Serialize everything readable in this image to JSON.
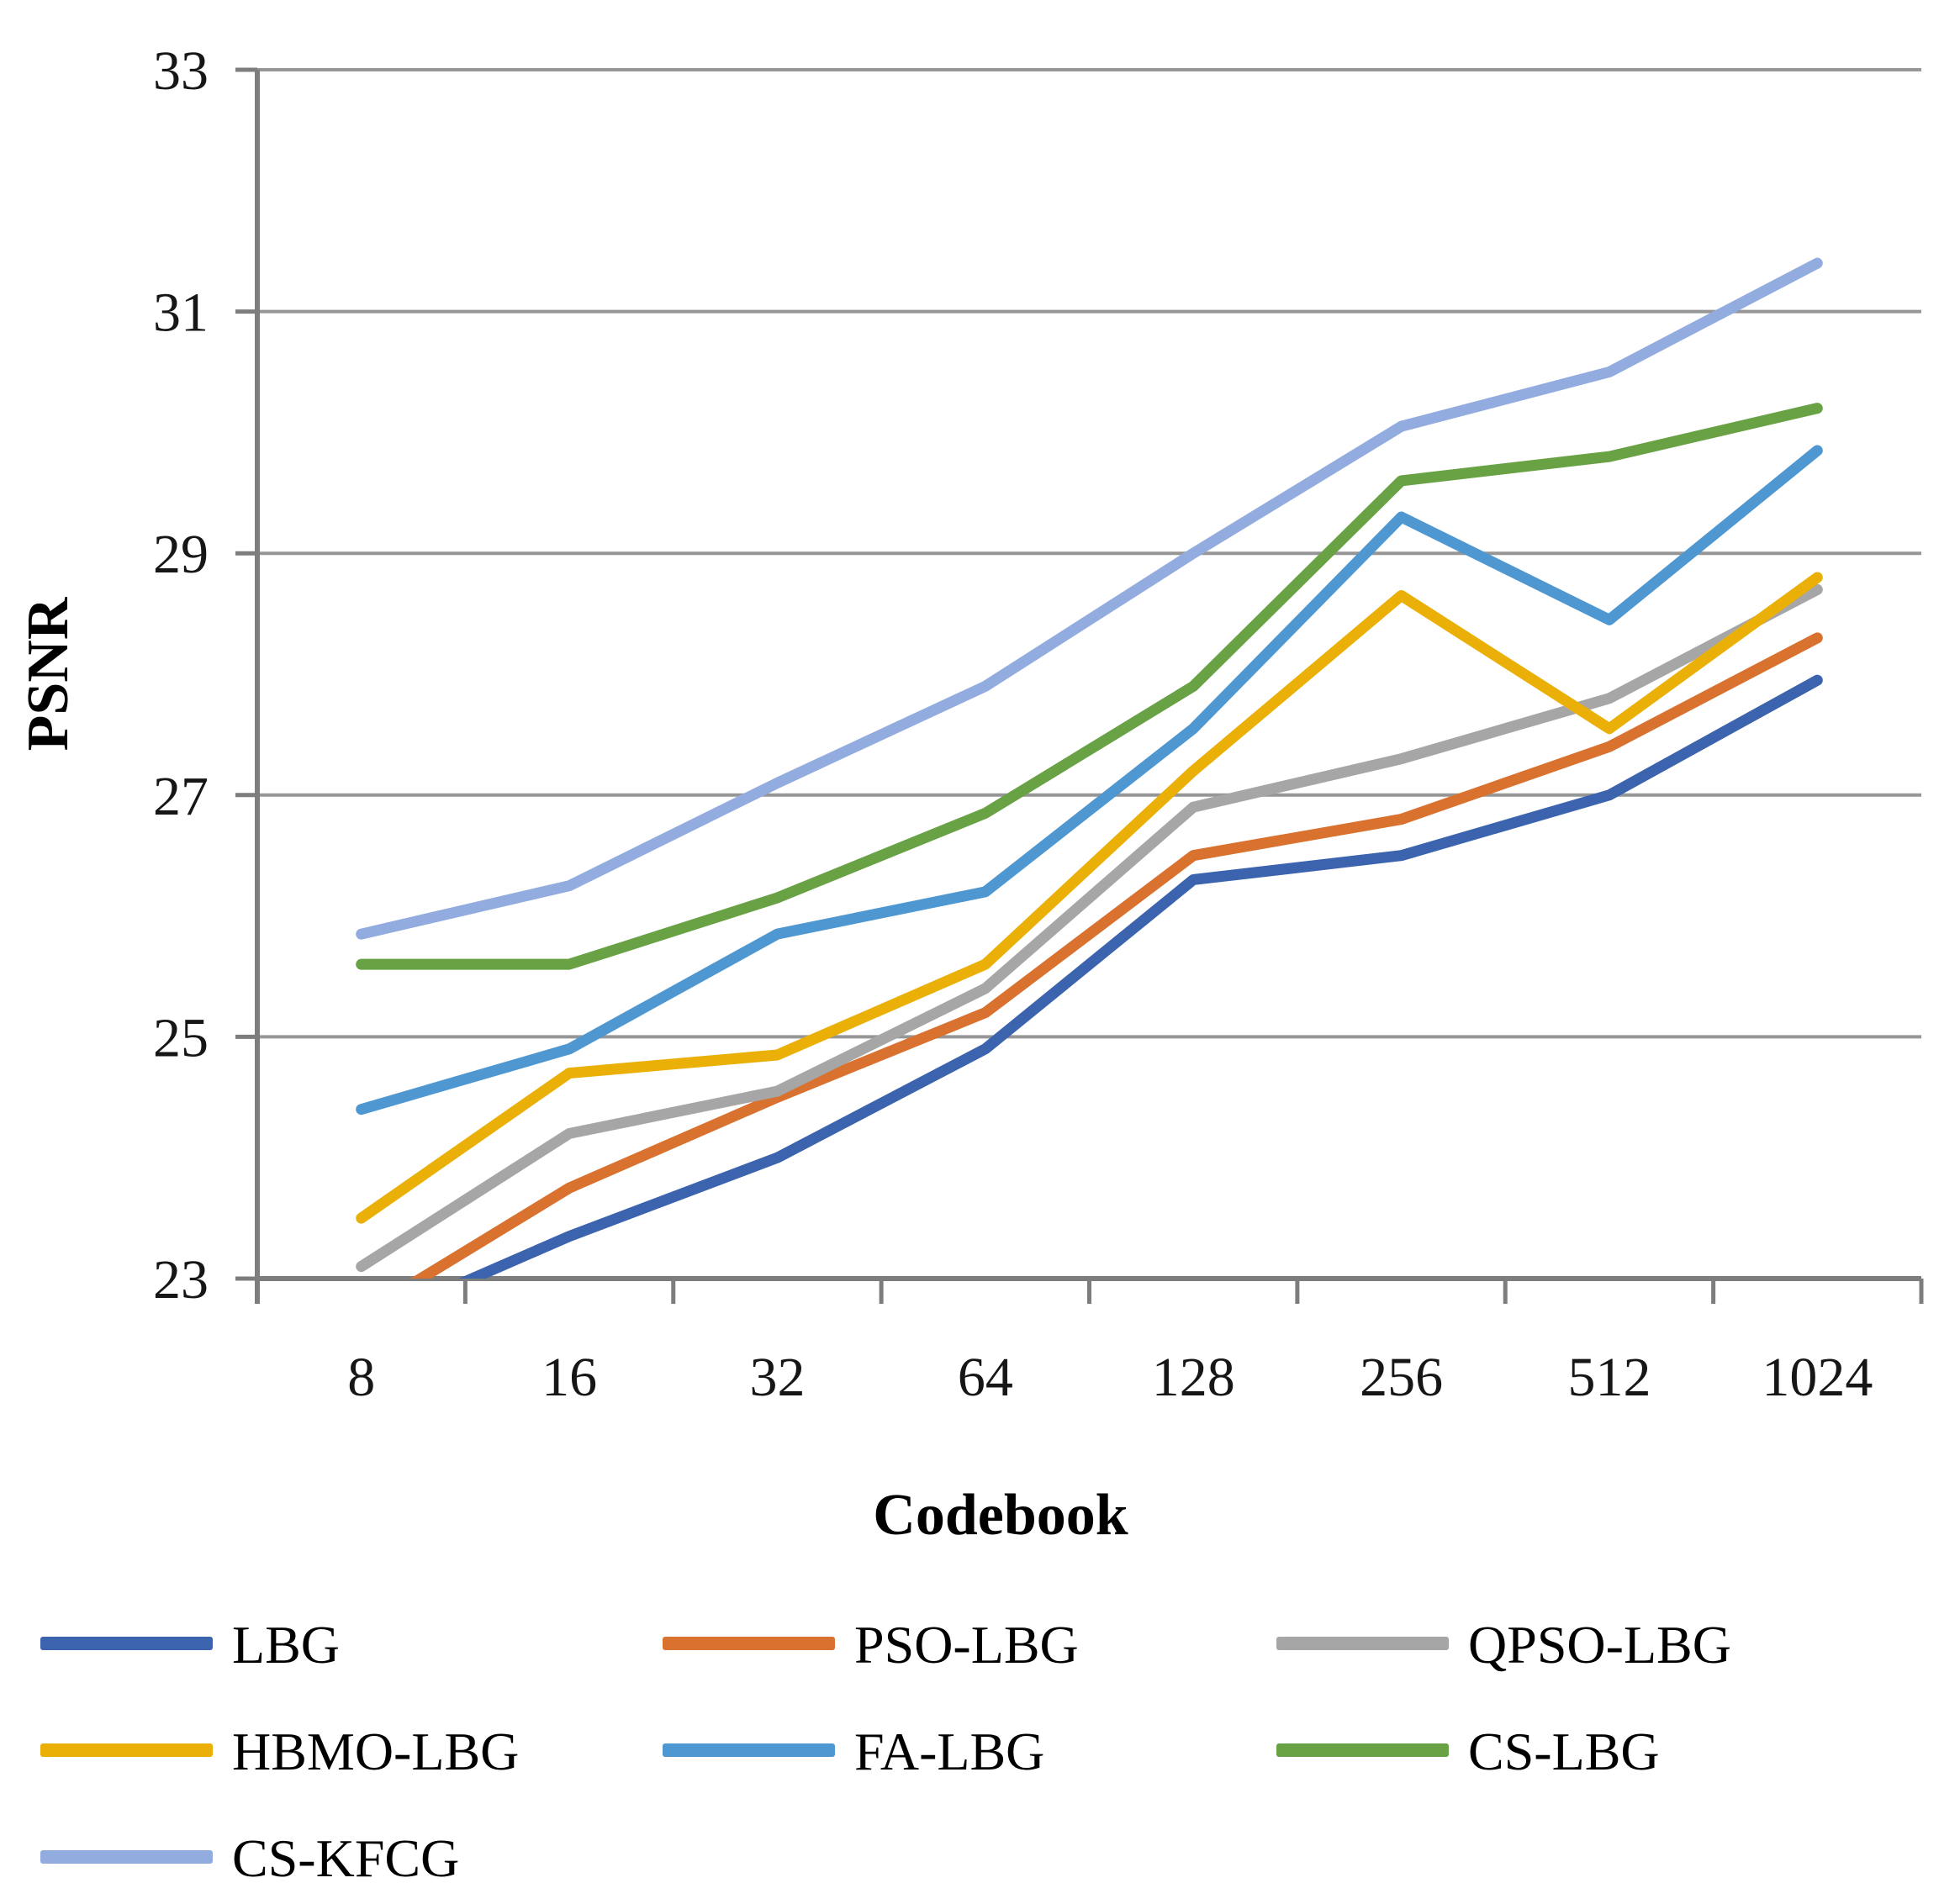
{
  "chart_data": {
    "type": "line",
    "title": "",
    "xlabel": "Codebook",
    "ylabel": "PSNR",
    "categories": [
      "8",
      "16",
      "32",
      "64",
      "128",
      "256",
      "512",
      "1024"
    ],
    "ylim": [
      23,
      33
    ],
    "yticks": [
      23,
      25,
      27,
      29,
      31,
      33
    ],
    "grid": "horizontal-only",
    "legend_position": "bottom-left",
    "colors": {
      "background": "#ffffff",
      "gridline": "#969696",
      "axis": "#7d7d7d",
      "tick_text": "#161616"
    },
    "series": [
      {
        "name": "LBG",
        "color": "#3c63ae",
        "values": [
          22.6,
          23.35,
          24.0,
          24.9,
          26.3,
          26.5,
          27.0,
          27.95
        ]
      },
      {
        "name": "PSO-LBG",
        "color": "#d9712f",
        "values": [
          22.7,
          23.75,
          24.5,
          25.2,
          26.5,
          26.8,
          27.4,
          28.3
        ]
      },
      {
        "name": "QPSO-LBG",
        "color": "#a6a6a6",
        "values": [
          23.1,
          24.2,
          24.55,
          25.4,
          26.9,
          27.3,
          27.8,
          28.7
        ]
      },
      {
        "name": "HBMO-LBG",
        "color": "#eab008",
        "values": [
          23.5,
          24.7,
          24.85,
          25.6,
          27.2,
          28.65,
          27.55,
          28.8
        ]
      },
      {
        "name": "FA-LBG",
        "color": "#4e97d1",
        "values": [
          24.4,
          24.9,
          25.85,
          26.2,
          27.55,
          29.3,
          28.45,
          29.85
        ]
      },
      {
        "name": "CS-LBG",
        "color": "#68a244",
        "values": [
          25.6,
          25.6,
          26.15,
          26.85,
          27.9,
          29.6,
          29.8,
          30.2
        ]
      },
      {
        "name": "CS-KFCG",
        "color": "#93acdf",
        "values": [
          25.85,
          26.25,
          27.1,
          27.9,
          29.0,
          30.05,
          30.5,
          31.4
        ]
      }
    ]
  }
}
